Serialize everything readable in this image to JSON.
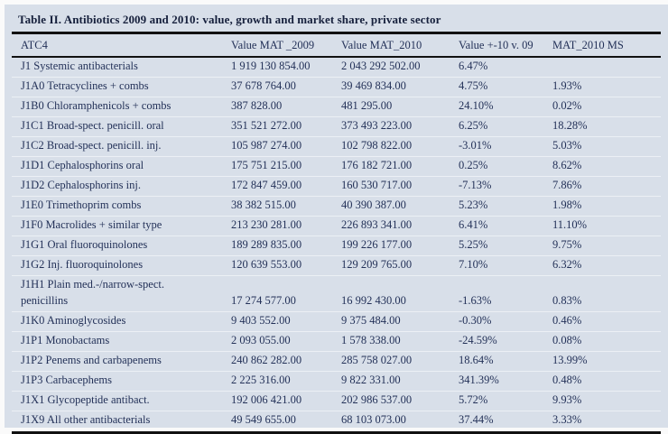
{
  "title": "Table II. Antibiotics 2009 and 2010: value, growth and market share, private sector",
  "columns": [
    "ATC4",
    "Value MAT _2009",
    "Value MAT_2010",
    "Value +-10 v. 09",
    "MAT_2010 MS"
  ],
  "rows": [
    {
      "name": "J1 Systemic antibacterials",
      "v2009": "1 919 130 854.00",
      "v2010": "2 043 292 502.00",
      "growth": "6.47%",
      "share": ""
    },
    {
      "name": "J1A0 Tetracyclines + combs",
      "v2009": "37 678 764.00",
      "v2010": "39 469 834.00",
      "growth": "4.75%",
      "share": "1.93%"
    },
    {
      "name": "J1B0 Chloramphenicols + combs",
      "v2009": "387 828.00",
      "v2010": "481 295.00",
      "growth": "24.10%",
      "share": "0.02%"
    },
    {
      "name": "J1C1 Broad-spect. penicill. oral",
      "v2009": "351 521 272.00",
      "v2010": "373 493 223.00",
      "growth": "6.25%",
      "share": "18.28%"
    },
    {
      "name": "J1C2 Broad-spect. penicill. inj.",
      "v2009": "105 987 274.00",
      "v2010": "102 798 822.00",
      "growth": "-3.01%",
      "share": "5.03%"
    },
    {
      "name": "J1D1 Cephalosphorins oral",
      "v2009": "175 751 215.00",
      "v2010": "176 182 721.00",
      "growth": "0.25%",
      "share": "8.62%"
    },
    {
      "name": "J1D2 Cephalosphorins inj.",
      "v2009": "172 847 459.00",
      "v2010": "160 530 717.00",
      "growth": "-7.13%",
      "share": "7.86%"
    },
    {
      "name": "J1E0 Trimethoprim combs",
      "v2009": "38 382 515.00",
      "v2010": "40 390 387.00",
      "growth": "5.23%",
      "share": "1.98%"
    },
    {
      "name": "J1F0 Macrolides + similar type",
      "v2009": "213 230 281.00",
      "v2010": "226 893 341.00",
      "growth": "6.41%",
      "share": "11.10%"
    },
    {
      "name": "J1G1 Oral fluoroquinolones",
      "v2009": "189 289 835.00",
      "v2010": "199 226 177.00",
      "growth": "5.25%",
      "share": "9.75%"
    },
    {
      "name": "J1G2 Inj. fluoroquinolones",
      "v2009": "120 639 553.00",
      "v2010": "129 209 765.00",
      "growth": "7.10%",
      "share": "6.32%"
    },
    {
      "name": "J1H1 Plain med.-/narrow-spect.",
      "name_line2": "penicillins",
      "v2009": "17 274 577.00",
      "v2010": "16 992 430.00",
      "growth": "-1.63%",
      "share": "0.83%"
    },
    {
      "name": "J1K0 Aminoglycosides",
      "v2009": "9 403 552.00",
      "v2010": "9 375 484.00",
      "growth": "-0.30%",
      "share": "0.46%"
    },
    {
      "name": "J1P1 Monobactams",
      "v2009": "2 093 055.00",
      "v2010": "1 578 338.00",
      "growth": "-24.59%",
      "share": "0.08%"
    },
    {
      "name": "J1P2 Penems and carbapenems",
      "v2009": "240 862 282.00",
      "v2010": "285 758 027.00",
      "growth": "18.64%",
      "share": "13.99%"
    },
    {
      "name": "J1P3 Carbacephems",
      "v2009": "2 225 316.00",
      "v2010": "9 822 331.00",
      "growth": "341.39%",
      "share": "0.48%"
    },
    {
      "name": "J1X1 Glycopeptide antibact.",
      "v2009": "192 006 421.00",
      "v2010": "202 986 537.00",
      "growth": "5.72%",
      "share": "9.93%"
    },
    {
      "name": "J1X9 All other antibacterials",
      "v2009": "49 549 655.00",
      "v2010": "68 103 073.00",
      "growth": "37.44%",
      "share": "3.33%"
    }
  ],
  "colors": {
    "panel_bg": "#d8dfe9",
    "text": "#233158",
    "title_text": "#16203c",
    "rule": "#111111",
    "divider": "#ecf0f5"
  }
}
